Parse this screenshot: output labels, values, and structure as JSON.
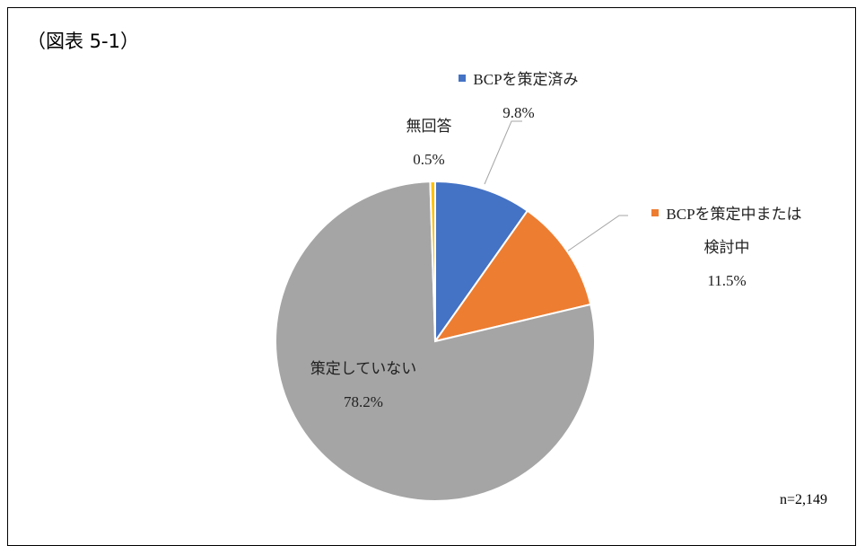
{
  "chart_data": {
    "type": "pie",
    "title": "（図表 5-1）",
    "note": "n=2,149",
    "categories": [
      "BCPを策定済み",
      "BCPを策定中または検討中",
      "策定していない",
      "無回答"
    ],
    "values": [
      9.8,
      11.5,
      78.2,
      0.5
    ],
    "value_labels": [
      "9.8%",
      "11.5%",
      "78.2%",
      "0.5%"
    ],
    "colors": [
      "#4472c4",
      "#ed7d31",
      "#a5a5a5",
      "#ffc000"
    ]
  }
}
